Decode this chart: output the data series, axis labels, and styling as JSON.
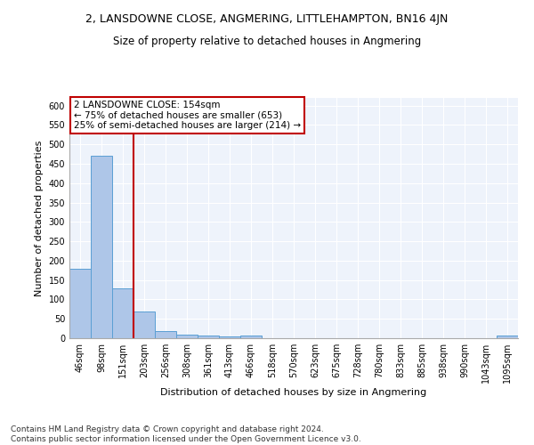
{
  "title_line1": "2, LANSDOWNE CLOSE, ANGMERING, LITTLEHAMPTON, BN16 4JN",
  "title_line2": "Size of property relative to detached houses in Angmering",
  "xlabel": "Distribution of detached houses by size in Angmering",
  "ylabel": "Number of detached properties",
  "bin_labels": [
    "46sqm",
    "98sqm",
    "151sqm",
    "203sqm",
    "256sqm",
    "308sqm",
    "361sqm",
    "413sqm",
    "466sqm",
    "518sqm",
    "570sqm",
    "623sqm",
    "675sqm",
    "728sqm",
    "780sqm",
    "833sqm",
    "885sqm",
    "938sqm",
    "990sqm",
    "1043sqm",
    "1095sqm"
  ],
  "bar_heights": [
    180,
    470,
    128,
    70,
    18,
    10,
    6,
    4,
    6,
    0,
    0,
    0,
    0,
    0,
    0,
    0,
    0,
    0,
    0,
    0,
    6
  ],
  "bar_color": "#aec6e8",
  "bar_edge_color": "#5a9fd4",
  "background_color": "#eef3fb",
  "grid_color": "#ffffff",
  "vline_x_index": 2.5,
  "vline_color": "#c00000",
  "annotation_line1": "2 LANSDOWNE CLOSE: 154sqm",
  "annotation_line2": "← 75% of detached houses are smaller (653)",
  "annotation_line3": "25% of semi-detached houses are larger (214) →",
  "annotation_box_color": "#c00000",
  "ylim": [
    0,
    620
  ],
  "yticks": [
    0,
    50,
    100,
    150,
    200,
    250,
    300,
    350,
    400,
    450,
    500,
    550,
    600
  ],
  "footer_line1": "Contains HM Land Registry data © Crown copyright and database right 2024.",
  "footer_line2": "Contains public sector information licensed under the Open Government Licence v3.0.",
  "title_fontsize": 9,
  "subtitle_fontsize": 8.5,
  "axis_label_fontsize": 8,
  "tick_fontsize": 7,
  "annotation_fontsize": 7.5,
  "footer_fontsize": 6.5
}
